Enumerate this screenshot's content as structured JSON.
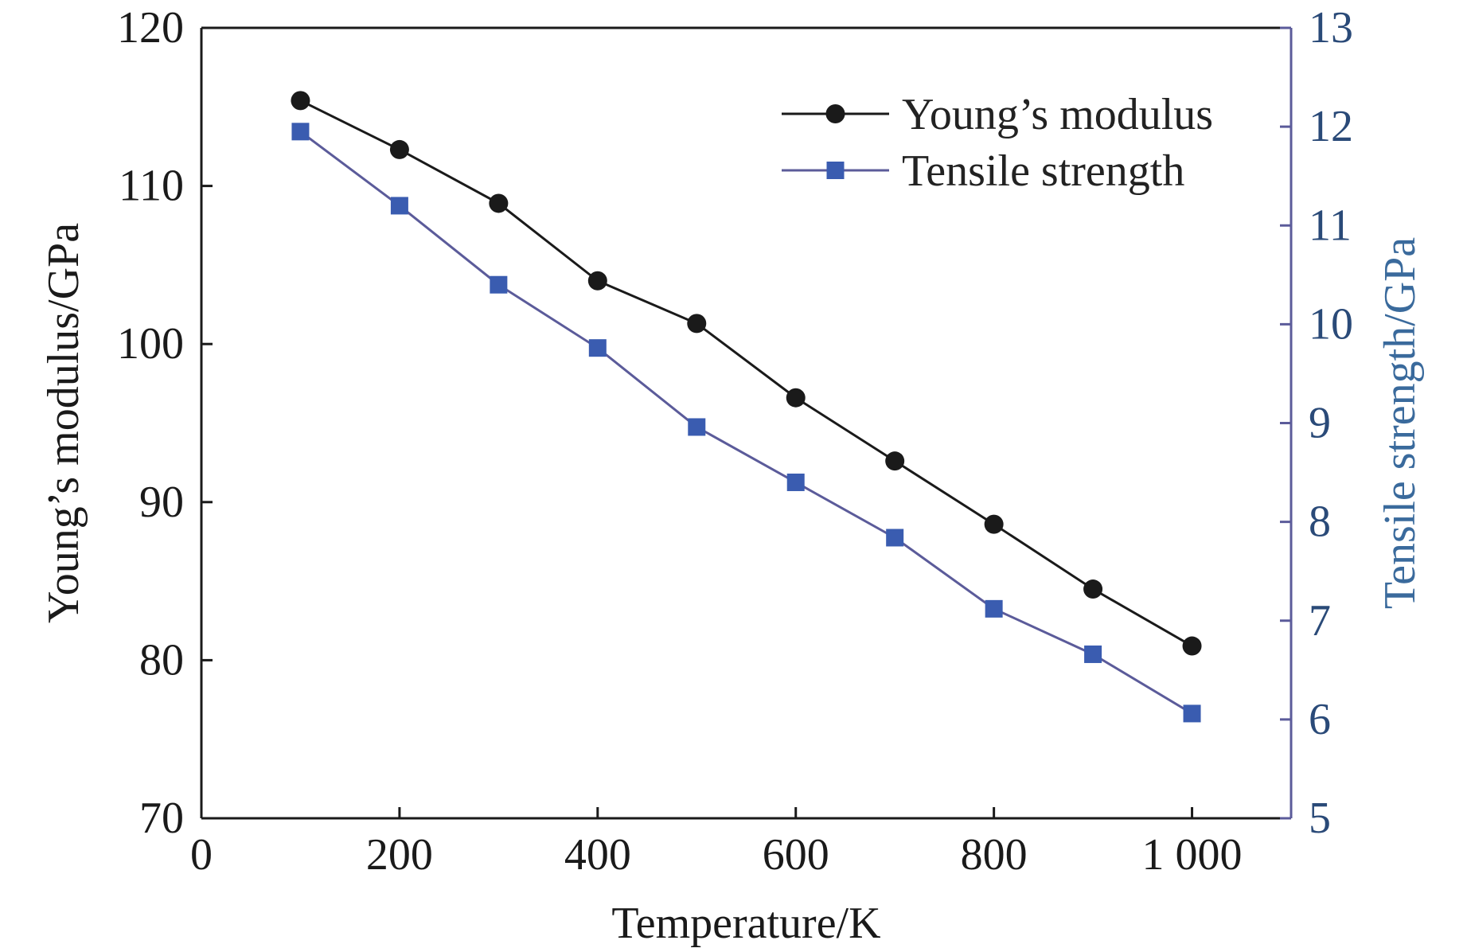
{
  "chart_data": {
    "type": "line",
    "x": [
      100,
      200,
      300,
      400,
      500,
      600,
      700,
      800,
      900,
      1000
    ],
    "x_tick_labels": [
      "0",
      "200",
      "400",
      "600",
      "800",
      "1 000"
    ],
    "x_ticks": [
      0,
      200,
      400,
      600,
      800,
      1000
    ],
    "xlim": [
      0,
      1100
    ],
    "xlabel": "Temperature/K",
    "ylabel": "Young’s modulus/GPa",
    "ylim": [
      70,
      120
    ],
    "y_ticks": [
      70,
      80,
      90,
      100,
      110,
      120
    ],
    "y_tick_labels": [
      "70",
      "80",
      "90",
      "100",
      "110",
      "120"
    ],
    "y2label": "Tensile strength/GPa",
    "y2lim": [
      5,
      13
    ],
    "y2_ticks": [
      5,
      6,
      7,
      8,
      9,
      10,
      11,
      12,
      13
    ],
    "y2_tick_labels": [
      "5",
      "6",
      "7",
      "8",
      "9",
      "10",
      "11",
      "12",
      "13"
    ],
    "grid": false,
    "legend_position": "top-right",
    "series": [
      {
        "name": "Young’s modulus",
        "axis": "left",
        "marker": "circle",
        "color": "#1a1a1a",
        "values": [
          115.4,
          112.3,
          108.9,
          104.0,
          101.3,
          96.6,
          92.6,
          88.6,
          84.5,
          80.9
        ]
      },
      {
        "name": "Tensile strength",
        "axis": "right",
        "marker": "square",
        "color": "#5b5b9a",
        "marker_color": "#3a5cb0",
        "values": [
          11.95,
          11.2,
          10.4,
          9.76,
          8.96,
          8.4,
          7.84,
          7.12,
          6.66,
          6.06
        ]
      }
    ]
  },
  "colors": {
    "left_axis": "#1a1a1a",
    "right_axis": "#5b5b9a",
    "right_tick_text": "#2a4a78",
    "right_title": "#3a6a9c"
  }
}
